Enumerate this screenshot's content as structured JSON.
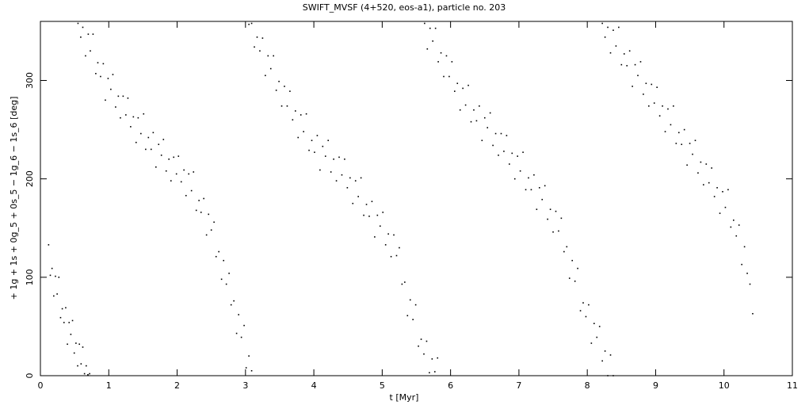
{
  "chart_data": {
    "type": "scatter",
    "title": "SWIFT_MVSF (4+520, eos-a1), particle no. 203",
    "x_label": "t [Myr]",
    "y_label": "+ 1g + 1s + 0g_5 + 0s_5 − 1g_6 − 1s_6 [deg]",
    "color": "#000000",
    "xlim": [
      0,
      11
    ],
    "ylim": [
      0,
      360
    ],
    "xticks": [
      0,
      1,
      2,
      3,
      4,
      5,
      6,
      7,
      8,
      9,
      10,
      11
    ],
    "yticks": [
      0,
      100,
      200,
      300
    ],
    "x": [
      0.12,
      0.145,
      0.17,
      0.195,
      0.22,
      0.245,
      0.27,
      0.295,
      0.32,
      0.345,
      0.37,
      0.395,
      0.42,
      0.445,
      0.47,
      0.495,
      0.52,
      0.545,
      0.57,
      0.595,
      0.62,
      0.645,
      0.67,
      0.695,
      0.72,
      0.55,
      0.59,
      0.62,
      0.66,
      0.7,
      0.73,
      0.77,
      0.81,
      0.84,
      0.88,
      0.92,
      0.95,
      0.99,
      1.03,
      1.06,
      1.1,
      1.14,
      1.17,
      1.21,
      1.25,
      1.28,
      1.32,
      1.36,
      1.4,
      1.43,
      1.47,
      1.51,
      1.54,
      1.58,
      1.62,
      1.65,
      1.69,
      1.73,
      1.77,
      1.8,
      1.84,
      1.88,
      1.91,
      1.95,
      1.99,
      2.02,
      2.06,
      2.1,
      2.13,
      2.17,
      2.21,
      2.24,
      2.28,
      2.32,
      2.35,
      2.39,
      2.43,
      2.46,
      2.5,
      2.54,
      2.57,
      2.61,
      2.65,
      2.68,
      2.72,
      2.76,
      2.79,
      2.83,
      2.87,
      2.9,
      2.94,
      2.98,
      3.01,
      3.05,
      3.09,
      3.05,
      3.09,
      3.13,
      3.17,
      3.21,
      3.25,
      3.29,
      3.33,
      3.37,
      3.41,
      3.45,
      3.49,
      3.53,
      3.57,
      3.61,
      3.65,
      3.69,
      3.73,
      3.77,
      3.81,
      3.85,
      3.89,
      3.93,
      3.97,
      4.01,
      4.05,
      4.09,
      4.13,
      4.17,
      4.21,
      4.25,
      4.29,
      4.33,
      4.37,
      4.41,
      4.45,
      4.49,
      4.53,
      4.57,
      4.61,
      4.65,
      4.69,
      4.73,
      4.77,
      4.81,
      4.85,
      4.89,
      4.93,
      4.97,
      5.01,
      5.05,
      5.09,
      5.13,
      5.17,
      5.21,
      5.25,
      5.29,
      5.33,
      5.37,
      5.41,
      5.45,
      5.49,
      5.53,
      5.57,
      5.61,
      5.65,
      5.69,
      5.73,
      5.77,
      5.81,
      5.62,
      5.66,
      5.7,
      5.74,
      5.78,
      5.82,
      5.86,
      5.9,
      5.94,
      5.98,
      6.02,
      6.06,
      6.1,
      6.14,
      6.18,
      6.22,
      6.26,
      6.3,
      6.34,
      6.38,
      6.42,
      6.46,
      6.5,
      6.54,
      6.58,
      6.62,
      6.66,
      6.7,
      6.74,
      6.78,
      6.82,
      6.86,
      6.9,
      6.94,
      6.98,
      7.02,
      7.06,
      7.1,
      7.14,
      7.18,
      7.22,
      7.26,
      7.3,
      7.34,
      7.38,
      7.42,
      7.46,
      7.5,
      7.54,
      7.58,
      7.62,
      7.66,
      7.7,
      7.74,
      7.78,
      7.82,
      7.86,
      7.9,
      7.94,
      7.98,
      8.02,
      8.06,
      8.1,
      8.14,
      8.18,
      8.22,
      8.26,
      8.3,
      8.34,
      8.38,
      8.22,
      8.26,
      8.3,
      8.34,
      8.38,
      8.42,
      8.46,
      8.5,
      8.54,
      8.58,
      8.62,
      8.66,
      8.7,
      8.74,
      8.78,
      8.82,
      8.86,
      8.9,
      8.94,
      8.98,
      9.02,
      9.06,
      9.1,
      9.14,
      9.18,
      9.22,
      9.26,
      9.3,
      9.34,
      9.38,
      9.42,
      9.46,
      9.5,
      9.54,
      9.58,
      9.62,
      9.66,
      9.7,
      9.74,
      9.78,
      9.82,
      9.86,
      9.9,
      9.94,
      9.98,
      10.02,
      10.06,
      10.1,
      10.14,
      10.18,
      10.22,
      10.26,
      10.3,
      10.34,
      10.38,
      10.42
    ],
    "values": [
      133,
      102,
      109,
      81,
      101,
      83,
      100,
      59,
      68,
      54,
      69,
      32,
      54,
      42,
      56,
      23,
      33,
      10,
      32,
      12,
      29,
      2,
      10,
      1,
      2,
      358,
      344,
      354,
      325,
      347,
      330,
      347,
      307,
      318,
      304,
      317,
      280,
      302,
      291,
      306,
      273,
      284,
      262,
      284,
      265,
      282,
      253,
      263,
      237,
      262,
      246,
      266,
      230,
      242,
      230,
      247,
      212,
      235,
      224,
      240,
      208,
      220,
      198,
      222,
      205,
      223,
      197,
      209,
      183,
      205,
      188,
      207,
      168,
      178,
      166,
      180,
      143,
      164,
      148,
      156,
      121,
      126,
      98,
      117,
      93,
      104,
      72,
      76,
      43,
      62,
      39,
      51,
      8,
      20,
      5,
      357,
      358,
      334,
      344,
      330,
      343,
      305,
      325,
      312,
      325,
      290,
      299,
      274,
      294,
      274,
      289,
      260,
      269,
      242,
      265,
      248,
      266,
      229,
      239,
      227,
      244,
      209,
      233,
      223,
      239,
      207,
      220,
      198,
      222,
      204,
      220,
      191,
      201,
      175,
      198,
      182,
      201,
      163,
      174,
      162,
      177,
      141,
      163,
      152,
      166,
      133,
      144,
      121,
      143,
      122,
      130,
      93,
      95,
      61,
      77,
      57,
      72,
      30,
      37,
      22,
      35,
      3,
      17,
      4,
      18,
      358,
      332,
      353,
      340,
      353,
      319,
      328,
      304,
      325,
      304,
      319,
      289,
      297,
      270,
      292,
      275,
      295,
      258,
      270,
      259,
      274,
      239,
      262,
      252,
      267,
      234,
      246,
      224,
      246,
      228,
      244,
      215,
      226,
      200,
      223,
      208,
      227,
      189,
      201,
      189,
      204,
      169,
      191,
      179,
      193,
      159,
      169,
      146,
      167,
      147,
      160,
      126,
      131,
      99,
      117,
      96,
      109,
      66,
      74,
      60,
      72,
      33,
      53,
      39,
      50,
      15,
      25,
      0,
      21,
      0,
      358,
      344,
      354,
      328,
      351,
      335,
      354,
      316,
      327,
      315,
      330,
      294,
      316,
      305,
      319,
      286,
      297,
      274,
      296,
      277,
      293,
      264,
      274,
      248,
      271,
      255,
      274,
      236,
      247,
      235,
      250,
      214,
      236,
      225,
      239,
      206,
      217,
      194,
      215,
      196,
      211,
      182,
      191,
      165,
      187,
      171,
      189,
      151,
      158,
      142,
      153,
      113,
      131,
      104,
      93,
      63
    ]
  }
}
